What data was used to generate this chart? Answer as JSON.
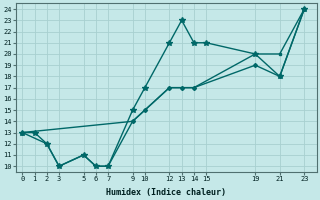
{
  "xlabel": "Humidex (Indice chaleur)",
  "bg_color": "#c5e8e8",
  "line_color": "#006868",
  "grid_color": "#a8d0d0",
  "xlim": [
    -0.5,
    24
  ],
  "ylim": [
    9.5,
    24.5
  ],
  "xticks": [
    0,
    1,
    2,
    3,
    5,
    6,
    7,
    9,
    10,
    12,
    13,
    14,
    15,
    19,
    21,
    23
  ],
  "yticks": [
    10,
    11,
    12,
    13,
    14,
    15,
    16,
    17,
    18,
    19,
    20,
    21,
    22,
    23,
    24
  ],
  "line1_x": [
    0,
    1,
    2,
    3,
    5,
    6,
    7,
    9,
    10,
    12,
    13,
    14,
    15,
    19,
    21,
    23
  ],
  "line1_y": [
    13,
    13,
    12,
    10,
    11,
    10,
    10,
    15,
    17,
    21,
    23,
    21,
    21,
    20,
    18,
    24
  ],
  "line2_x": [
    0,
    9,
    10,
    12,
    13,
    14,
    19,
    21,
    23
  ],
  "line2_y": [
    13,
    14,
    15,
    17,
    17,
    17,
    19,
    18,
    24
  ],
  "line3_x": [
    0,
    2,
    3,
    5,
    6,
    7,
    9,
    10,
    12,
    13,
    14,
    19,
    21,
    23
  ],
  "line3_y": [
    13,
    12,
    10,
    11,
    10,
    10,
    14,
    15,
    17,
    17,
    17,
    20,
    20,
    24
  ]
}
